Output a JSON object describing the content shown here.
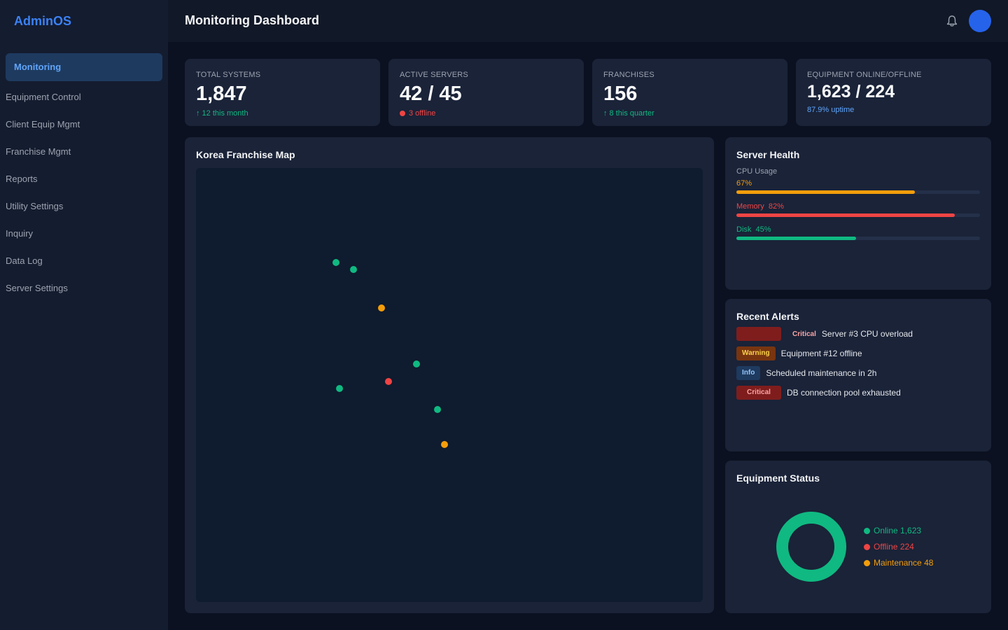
{
  "app": {
    "brand": "AdminOS"
  },
  "sidebar": {
    "items": [
      {
        "label": "Monitoring",
        "active": true
      },
      {
        "label": "Equipment Control"
      },
      {
        "label": "Client Equip Mgmt"
      },
      {
        "label": "Franchise Mgmt"
      },
      {
        "label": "Reports"
      },
      {
        "label": "Utility Settings"
      },
      {
        "label": "Inquiry"
      },
      {
        "label": "Data Log"
      },
      {
        "label": "Server Settings"
      }
    ]
  },
  "header": {
    "title": "Monitoring Dashboard",
    "notifications_icon": "bell-icon",
    "avatar_color": "#2563eb"
  },
  "stats": [
    {
      "label": "TOTAL SYSTEMS",
      "value": "1,847",
      "sub": "↑ 12 this month"
    },
    {
      "label": "ACTIVE SERVERS",
      "value": "42 / 45",
      "sub": "3 offline"
    },
    {
      "label": "FRANCHISES",
      "value": "156",
      "sub": "↑ 8 this quarter"
    },
    {
      "label": "EQUIPMENT ONLINE/OFFLINE",
      "value": "1,623 / 224",
      "sub": "87.9% uptime"
    }
  ],
  "map": {
    "title": "Korea Franchise Map",
    "markers": [
      {
        "status": "online"
      },
      {
        "status": "online"
      },
      {
        "status": "maintenance"
      },
      {
        "status": "online"
      },
      {
        "status": "online"
      },
      {
        "status": "offline"
      },
      {
        "status": "online"
      },
      {
        "status": "maintenance"
      }
    ]
  },
  "server_health": {
    "title": "Server Health",
    "cpu": {
      "label": "CPU Usage",
      "value_text": "67%",
      "percent": 67
    },
    "memory": {
      "label": "Memory",
      "value_text": "82%",
      "percent": 82
    },
    "disk": {
      "label": "Disk",
      "value_text": "45%",
      "percent": 45
    }
  },
  "alerts": {
    "title": "Recent Alerts",
    "items": [
      {
        "level": "Critical",
        "message": "Server #3 CPU overload"
      },
      {
        "level": "Warning",
        "message": "Equipment #12 offline"
      },
      {
        "level": "Info",
        "message": "Scheduled maintenance in 2h"
      },
      {
        "level": "Critical",
        "message": "DB connection pool exhausted"
      }
    ]
  },
  "equipment": {
    "title": "Equipment Status",
    "legend": [
      {
        "label": "Online",
        "value": "1,623"
      },
      {
        "label": "Offline",
        "value": "224"
      },
      {
        "label": "Maintenance",
        "value": "48"
      }
    ]
  },
  "colors": {
    "accent": "#3b82f6",
    "online": "#10b981",
    "offline": "#ef4444",
    "maintenance": "#f59e0b",
    "info": "#60a5fa"
  }
}
